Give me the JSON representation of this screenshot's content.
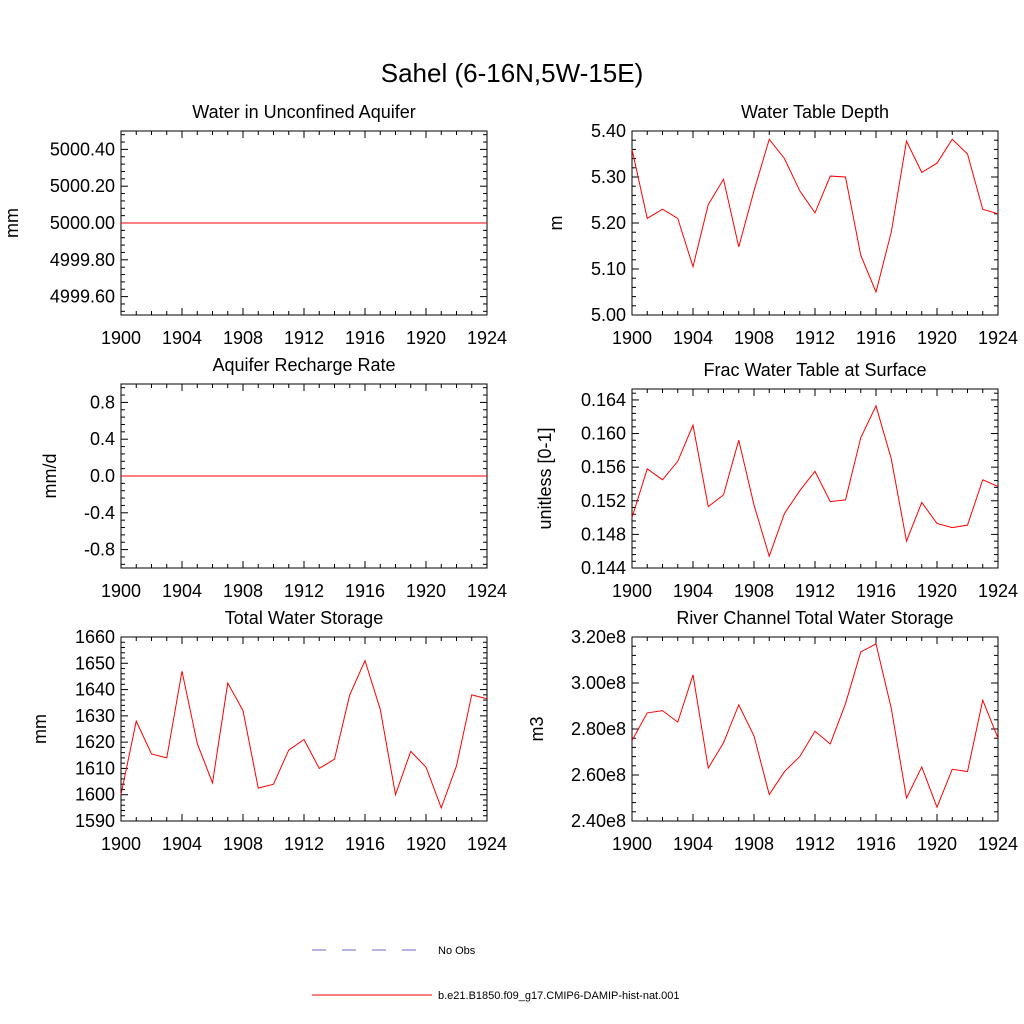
{
  "figure": {
    "title": "Sahel (6-16N,5W-15E)"
  },
  "legend": {
    "entries": [
      {
        "label": "No Obs",
        "color": "#6a6acd",
        "style": "dashed"
      },
      {
        "label": "b.e21.B1850.f09_g17.CMIP6-DAMIP-hist-nat.001",
        "color": "#ff0000",
        "style": "solid"
      }
    ]
  },
  "chart_data": [
    {
      "type": "line",
      "title": "Water in Unconfined Aquifer",
      "ylabel": "mm",
      "xlim": [
        1900,
        1924
      ],
      "ylim": [
        4999.5,
        5000.5
      ],
      "xticks": [
        "1900",
        "1904",
        "1908",
        "1912",
        "1916",
        "1920",
        "1924"
      ],
      "yticks": [
        4999.6,
        4999.8,
        5000.0,
        5000.2,
        5000.4
      ],
      "ytick_labels": [
        "4999.60",
        "4999.80",
        "5000.00",
        "5000.20",
        "5000.40"
      ],
      "series": [
        {
          "color": "#ff0000",
          "x": [
            1900,
            1901,
            1902,
            1903,
            1904,
            1905,
            1906,
            1907,
            1908,
            1909,
            1910,
            1911,
            1912,
            1913,
            1914,
            1915,
            1916,
            1917,
            1918,
            1919,
            1920,
            1921,
            1922,
            1923,
            1924
          ],
          "values": [
            5000,
            5000,
            5000,
            5000,
            5000,
            5000,
            5000,
            5000,
            5000,
            5000,
            5000,
            5000,
            5000,
            5000,
            5000,
            5000,
            5000,
            5000,
            5000,
            5000,
            5000,
            5000,
            5000,
            5000,
            5000
          ]
        }
      ]
    },
    {
      "type": "line",
      "title": "Water Table Depth",
      "ylabel": "m",
      "xlim": [
        1900,
        1924
      ],
      "ylim": [
        5.0,
        5.4
      ],
      "xticks": [
        "1900",
        "1904",
        "1908",
        "1912",
        "1916",
        "1920",
        "1924"
      ],
      "yticks": [
        5.0,
        5.1,
        5.2,
        5.3,
        5.4
      ],
      "ytick_labels": [
        "5.00",
        "5.10",
        "5.20",
        "5.30",
        "5.40"
      ],
      "series": [
        {
          "color": "#ff0000",
          "x": [
            1900,
            1901,
            1902,
            1903,
            1904,
            1905,
            1906,
            1907,
            1908,
            1909,
            1910,
            1911,
            1912,
            1913,
            1914,
            1915,
            1916,
            1917,
            1918,
            1919,
            1920,
            1921,
            1922,
            1923,
            1924
          ],
          "values": [
            5.36,
            5.21,
            5.23,
            5.21,
            5.105,
            5.24,
            5.295,
            5.148,
            5.27,
            5.382,
            5.34,
            5.27,
            5.222,
            5.302,
            5.3,
            5.13,
            5.05,
            5.18,
            5.378,
            5.31,
            5.33,
            5.382,
            5.35,
            5.23,
            5.22
          ]
        }
      ]
    },
    {
      "type": "line",
      "title": "Aquifer Recharge Rate",
      "ylabel": "mm/d",
      "xlim": [
        1900,
        1924
      ],
      "ylim": [
        -1.0,
        1.0
      ],
      "xticks": [
        "1900",
        "1904",
        "1908",
        "1912",
        "1916",
        "1920",
        "1924"
      ],
      "yticks": [
        -0.8,
        -0.4,
        0.0,
        0.4,
        0.8
      ],
      "ytick_labels": [
        "-0.8",
        "-0.4",
        "0.0",
        "0.4",
        "0.8"
      ],
      "series": [
        {
          "color": "#ff0000",
          "x": [
            1900,
            1901,
            1902,
            1903,
            1904,
            1905,
            1906,
            1907,
            1908,
            1909,
            1910,
            1911,
            1912,
            1913,
            1914,
            1915,
            1916,
            1917,
            1918,
            1919,
            1920,
            1921,
            1922,
            1923,
            1924
          ],
          "values": [
            0,
            0,
            0,
            0,
            0,
            0,
            0,
            0,
            0,
            0,
            0,
            0,
            0,
            0,
            0,
            0,
            0,
            0,
            0,
            0,
            0,
            0,
            0,
            0,
            0
          ]
        }
      ]
    },
    {
      "type": "line",
      "title": "Frac Water Table at Surface",
      "ylabel": "unitless [0-1]",
      "xlim": [
        1900,
        1924
      ],
      "ylim": [
        0.144,
        0.1653
      ],
      "xticks": [
        "1900",
        "1904",
        "1908",
        "1912",
        "1916",
        "1920",
        "1924"
      ],
      "yticks": [
        0.144,
        0.148,
        0.152,
        0.156,
        0.16,
        0.164
      ],
      "ytick_labels": [
        "0.144",
        "0.148",
        "0.152",
        "0.156",
        "0.160",
        "0.164"
      ],
      "series": [
        {
          "color": "#ff0000",
          "x": [
            1900,
            1901,
            1902,
            1903,
            1904,
            1905,
            1906,
            1907,
            1908,
            1909,
            1910,
            1911,
            1912,
            1913,
            1914,
            1915,
            1916,
            1917,
            1918,
            1919,
            1920,
            1921,
            1922,
            1923,
            1924
          ],
          "values": [
            0.15,
            0.1558,
            0.1545,
            0.1567,
            0.161,
            0.1513,
            0.1527,
            0.1592,
            0.1515,
            0.1454,
            0.1505,
            0.1532,
            0.1555,
            0.1519,
            0.1521,
            0.1595,
            0.1633,
            0.157,
            0.1472,
            0.1518,
            0.1493,
            0.1488,
            0.1491,
            0.1545,
            0.1537
          ]
        }
      ]
    },
    {
      "type": "line",
      "title": "Total Water Storage",
      "ylabel": "mm",
      "xlim": [
        1900,
        1924
      ],
      "ylim": [
        1590,
        1660
      ],
      "xticks": [
        "1900",
        "1904",
        "1908",
        "1912",
        "1916",
        "1920",
        "1924"
      ],
      "yticks": [
        1590,
        1600,
        1610,
        1620,
        1630,
        1640,
        1650,
        1660
      ],
      "ytick_labels": [
        "1590",
        "1600",
        "1610",
        "1620",
        "1630",
        "1640",
        "1650",
        "1660"
      ],
      "series": [
        {
          "color": "#ff0000",
          "x": [
            1900,
            1901,
            1902,
            1903,
            1904,
            1905,
            1906,
            1907,
            1908,
            1909,
            1910,
            1911,
            1912,
            1913,
            1914,
            1915,
            1916,
            1917,
            1918,
            1919,
            1920,
            1921,
            1922,
            1923,
            1924
          ],
          "values": [
            1600,
            1628,
            1615.5,
            1614,
            1647,
            1619.5,
            1604.5,
            1642.5,
            1632,
            1602.5,
            1604,
            1617,
            1621,
            1610,
            1613.5,
            1638,
            1651,
            1632.5,
            1600,
            1616.5,
            1610.5,
            1595,
            1611,
            1638,
            1636.5
          ]
        }
      ]
    },
    {
      "type": "line",
      "title": "River Channel Total Water Storage",
      "ylabel": "m3",
      "xlim": [
        1900,
        1924
      ],
      "ylim": [
        240000000,
        320000000
      ],
      "xticks": [
        "1900",
        "1904",
        "1908",
        "1912",
        "1916",
        "1920",
        "1924"
      ],
      "yticks": [
        240000000,
        260000000,
        280000000,
        300000000,
        320000000
      ],
      "ytick_labels": [
        "2.40e8",
        "2.60e8",
        "2.80e8",
        "3.00e8",
        "3.20e8"
      ],
      "series": [
        {
          "color": "#ff0000",
          "x": [
            1900,
            1901,
            1902,
            1903,
            1904,
            1905,
            1906,
            1907,
            1908,
            1909,
            1910,
            1911,
            1912,
            1913,
            1914,
            1915,
            1916,
            1917,
            1918,
            1919,
            1920,
            1921,
            1922,
            1923,
            1924
          ],
          "values": [
            275000000,
            287000000,
            288000000,
            283000000,
            303500000,
            263000000,
            274000000,
            290500000,
            277000000,
            251500000,
            261500000,
            268000000,
            279000000,
            273500000,
            291000000,
            313500000,
            317000000,
            289000000,
            250000000,
            263500000,
            246000000,
            262500000,
            261500000,
            292500000,
            276000000
          ]
        }
      ]
    }
  ]
}
